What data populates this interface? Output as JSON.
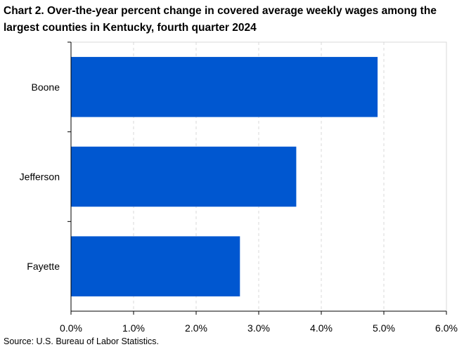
{
  "chart_data": {
    "type": "bar",
    "orientation": "horizontal",
    "title": "Chart 2. Over-the-year percent change in covered average weekly wages among the largest counties in Kentucky, fourth quarter 2024",
    "categories": [
      "Boone",
      "Jefferson",
      "Fayette"
    ],
    "values": [
      4.9,
      3.6,
      2.7
    ],
    "xlim": [
      0,
      6
    ],
    "xticks": [
      "0.0%",
      "1.0%",
      "2.0%",
      "3.0%",
      "4.0%",
      "5.0%",
      "6.0%"
    ],
    "xlabel": "",
    "ylabel": "",
    "grid": "vertical dashed",
    "bar_color": "#0057d0",
    "source": "Source: U.S. Bureau of Labor Statistics."
  }
}
